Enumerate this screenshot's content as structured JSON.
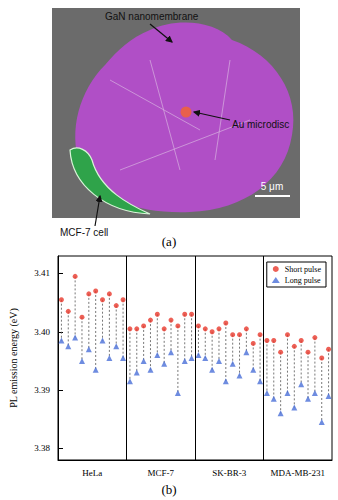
{
  "panel_a": {
    "label": "(a)",
    "annotations": [
      "GaN nanomembrane",
      "Au microdisc",
      "MCF-7 cell"
    ],
    "scale_bar": "5 μm"
  },
  "chart_data": {
    "panel_label": "(b)",
    "type": "scatter",
    "ylabel": "PL emission energy (eV)",
    "categories": [
      "HeLa",
      "MCF-7",
      "SK-BR-3",
      "MDA-MB-231"
    ],
    "series": [
      {
        "name": "Short pulse",
        "color": "#e8382c",
        "marker": "circle",
        "values": [
          [
            3.4055,
            3.4035,
            3.4095,
            3.4025,
            3.4065,
            3.407,
            3.4055,
            3.4065,
            3.4045,
            3.4055
          ],
          [
            3.4005,
            3.4005,
            3.401,
            3.402,
            3.403,
            3.4005,
            3.402,
            3.401,
            3.403,
            3.403
          ],
          [
            3.401,
            3.4005,
            3.4,
            3.4005,
            3.4015,
            3.3995,
            3.3995,
            3.4005,
            3.398,
            3.3995
          ],
          [
            3.3985,
            3.3985,
            3.3965,
            3.3995,
            3.3975,
            3.3985,
            3.3965,
            3.399,
            3.3955,
            3.397
          ]
        ]
      },
      {
        "name": "Long pulse",
        "color": "#4a6fd8",
        "marker": "triangle",
        "values": [
          [
            3.3985,
            3.3975,
            3.399,
            3.395,
            3.397,
            3.3935,
            3.3985,
            3.3955,
            3.3975,
            3.3955
          ],
          [
            3.3915,
            3.393,
            3.395,
            3.3935,
            3.396,
            3.3945,
            3.3965,
            3.3895,
            3.395,
            3.3955
          ],
          [
            3.396,
            3.3955,
            3.3935,
            3.395,
            3.3915,
            3.3945,
            3.3925,
            3.3965,
            3.3935,
            3.3915
          ],
          [
            3.3895,
            3.3885,
            3.386,
            3.3895,
            3.387,
            3.391,
            3.3885,
            3.3895,
            3.3845,
            3.389
          ]
        ]
      }
    ],
    "ylim": [
      3.378,
      3.413
    ],
    "yticks": [
      3.38,
      3.39,
      {
        "value": 3.4,
        "label": "3.40"
      },
      3.41
    ],
    "grid": false,
    "legend": "upper right"
  }
}
